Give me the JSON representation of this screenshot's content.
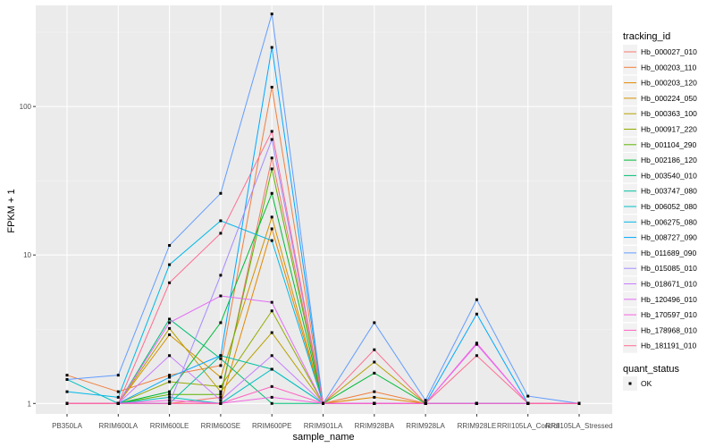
{
  "chart_data": {
    "type": "line",
    "title": "",
    "xlabel": "sample_name",
    "ylabel": "FPKM + 1",
    "y_scale": "log10",
    "ylim": [
      0.85,
      480
    ],
    "y_ticks": [
      1,
      10,
      100
    ],
    "y_tick_labels": [
      "1",
      "10",
      "100"
    ],
    "categories": [
      "PB350LA",
      "RRIM600LA",
      "RRIM600LE",
      "RRIM600SE",
      "RRIM600PE",
      "RRIM901LA",
      "RRIM928BA",
      "RRIM928LA",
      "RRIM928LE",
      "RRII105LA_Control",
      "RRII105LA_Stressed"
    ],
    "legend": {
      "title": "tracking_id",
      "position": "right",
      "status_title": "quant_status",
      "status_label": "OK"
    },
    "series": [
      {
        "name": "Hb_000027_010",
        "color": "#F8766D",
        "values": [
          1.0,
          1.0,
          1.0,
          1.1,
          45.0,
          1.0,
          1.0,
          1.0,
          1.0,
          1.0,
          1.0
        ]
      },
      {
        "name": "Hb_000203_110",
        "color": "#F07F3F",
        "values": [
          1.55,
          1.2,
          1.55,
          1.8,
          135.0,
          1.0,
          1.2,
          1.0,
          1.0,
          1.0,
          1.0
        ]
      },
      {
        "name": "Hb_000203_120",
        "color": "#E58700",
        "values": [
          1.0,
          1.0,
          1.0,
          1.0,
          15.0,
          1.0,
          1.1,
          1.0,
          1.0,
          1.0,
          1.0
        ]
      },
      {
        "name": "Hb_000224_050",
        "color": "#D39200",
        "values": [
          1.0,
          1.0,
          2.9,
          1.5,
          18.0,
          1.0,
          1.0,
          1.0,
          1.0,
          1.0,
          1.0
        ]
      },
      {
        "name": "Hb_000363_100",
        "color": "#B79F00",
        "values": [
          1.0,
          1.0,
          3.2,
          1.2,
          3.0,
          1.0,
          1.9,
          1.0,
          1.0,
          1.0,
          1.0
        ]
      },
      {
        "name": "Hb_000917_220",
        "color": "#93AA00",
        "values": [
          1.0,
          1.0,
          1.4,
          1.3,
          4.2,
          1.0,
          1.0,
          1.0,
          1.0,
          1.0,
          1.0
        ]
      },
      {
        "name": "Hb_001104_290",
        "color": "#5EB300",
        "values": [
          1.0,
          1.0,
          1.15,
          1.15,
          38.0,
          1.0,
          1.0,
          1.0,
          1.0,
          1.0,
          1.0
        ]
      },
      {
        "name": "Hb_002186_120",
        "color": "#00BA38",
        "values": [
          1.0,
          1.0,
          1.2,
          3.5,
          26.0,
          1.0,
          1.6,
          1.0,
          1.0,
          1.0,
          1.0
        ]
      },
      {
        "name": "Hb_003540_010",
        "color": "#00BF74",
        "values": [
          1.0,
          1.0,
          3.7,
          2.0,
          1.0,
          1.0,
          1.0,
          1.0,
          1.0,
          1.0,
          1.0
        ]
      },
      {
        "name": "Hb_003747_080",
        "color": "#00C19F",
        "values": [
          1.0,
          1.0,
          1.0,
          2.1,
          1.7,
          1.0,
          1.0,
          1.0,
          1.0,
          1.0,
          1.0
        ]
      },
      {
        "name": "Hb_006052_080",
        "color": "#00BFC4",
        "values": [
          1.45,
          1.0,
          1.1,
          1.0,
          1.7,
          1.0,
          1.0,
          1.0,
          1.0,
          1.0,
          1.0
        ]
      },
      {
        "name": "Hb_006275_080",
        "color": "#00B8E7",
        "values": [
          1.2,
          1.1,
          8.6,
          17.0,
          12.5,
          1.0,
          1.0,
          1.0,
          1.0,
          1.0,
          1.0
        ]
      },
      {
        "name": "Hb_008727_090",
        "color": "#00A9FF",
        "values": [
          1.0,
          1.0,
          1.5,
          2.1,
          250.0,
          1.0,
          1.0,
          1.0,
          4.0,
          1.0,
          1.0
        ]
      },
      {
        "name": "Hb_011689_090",
        "color": "#619CFF",
        "values": [
          1.45,
          1.55,
          11.6,
          26.0,
          420.0,
          1.0,
          3.5,
          1.05,
          5.0,
          1.12,
          1.0
        ]
      },
      {
        "name": "Hb_015085_010",
        "color": "#A58AFF",
        "values": [
          1.0,
          1.0,
          1.0,
          7.3,
          60.0,
          1.0,
          1.0,
          1.0,
          1.0,
          1.0,
          1.0
        ]
      },
      {
        "name": "Hb_018671_010",
        "color": "#C77CFF",
        "values": [
          1.0,
          1.0,
          2.1,
          1.05,
          2.1,
          1.0,
          1.0,
          1.0,
          1.0,
          1.0,
          1.0
        ]
      },
      {
        "name": "Hb_120496_010",
        "color": "#E36EF6",
        "values": [
          1.0,
          1.0,
          3.5,
          5.3,
          4.8,
          1.0,
          1.0,
          1.0,
          2.5,
          1.0,
          1.0
        ]
      },
      {
        "name": "Hb_170597_010",
        "color": "#F564E3",
        "values": [
          1.0,
          1.0,
          1.05,
          1.0,
          1.1,
          1.0,
          1.0,
          1.0,
          2.55,
          1.0,
          1.0
        ]
      },
      {
        "name": "Hb_178968_010",
        "color": "#FF61C3",
        "values": [
          1.0,
          1.0,
          1.0,
          1.0,
          1.3,
          1.0,
          1.0,
          1.0,
          1.0,
          1.0,
          1.0
        ]
      },
      {
        "name": "Hb_181191_010",
        "color": "#FF6C91",
        "values": [
          1.0,
          1.0,
          6.5,
          14.0,
          68.0,
          1.0,
          2.3,
          1.0,
          2.1,
          1.0,
          1.0
        ]
      }
    ]
  }
}
